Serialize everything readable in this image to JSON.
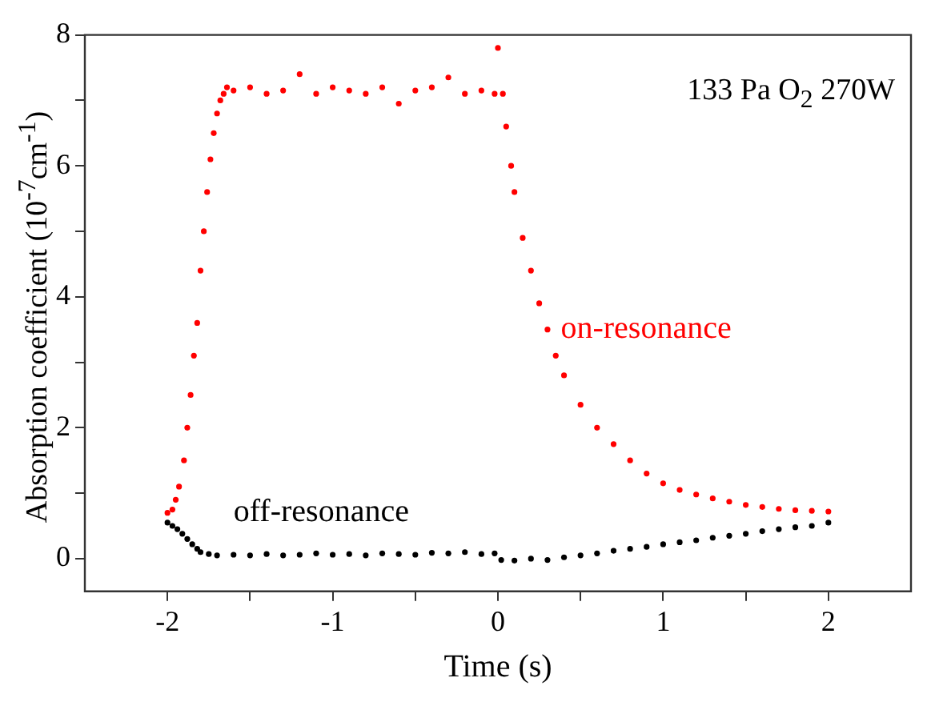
{
  "chart_data": {
    "type": "scatter",
    "xlabel": "Time (s)",
    "ylabel": "Absorption coefficient (10$^{-7}$cm$^{-1}$)",
    "annotations": [
      "133 Pa O$_{2}$ 270W"
    ],
    "xlim": [
      -2.5,
      2.5
    ],
    "ylim": [
      -0.5,
      8
    ],
    "xticks": [
      -2,
      {
        "value": -1.5,
        "label": null
      },
      -1,
      {
        "value": -0.5,
        "label": null
      },
      0,
      {
        "value": 0.5,
        "label": null
      },
      1,
      {
        "value": 1.5,
        "label": null
      },
      2
    ],
    "yticks": [
      0,
      {
        "value": 1,
        "label": null
      },
      2,
      {
        "value": 3,
        "label": null
      },
      4,
      {
        "value": 5,
        "label": null
      },
      6,
      {
        "value": 7,
        "label": null
      },
      8
    ],
    "grid": false,
    "legend": false,
    "marker": "circle",
    "series": [
      {
        "name": "on-resonance",
        "color": "#ff0000",
        "x": [
          -2,
          -1.97,
          -1.95,
          -1.93,
          -1.9,
          -1.88,
          -1.86,
          -1.84,
          -1.82,
          -1.8,
          -1.78,
          -1.76,
          -1.74,
          -1.72,
          -1.7,
          -1.68,
          -1.66,
          -1.64,
          -1.6,
          -1.5,
          -1.4,
          -1.3,
          -1.2,
          -1.1,
          -1,
          -0.9,
          -0.8,
          -0.7,
          -0.6,
          -0.5,
          -0.4,
          -0.3,
          -0.2,
          -0.1,
          -0.02,
          0,
          0.03,
          0.05,
          0.08,
          0.1,
          0.15,
          0.2,
          0.25,
          0.3,
          0.35,
          0.4,
          0.5,
          0.6,
          0.7,
          0.8,
          0.9,
          1,
          1.1,
          1.2,
          1.3,
          1.4,
          1.5,
          1.6,
          1.7,
          1.8,
          1.9,
          2
        ],
        "values": [
          0.7,
          0.75,
          0.9,
          1.1,
          1.5,
          2,
          2.5,
          3.1,
          3.6,
          4.4,
          5,
          5.6,
          6.1,
          6.5,
          6.8,
          7,
          7.1,
          7.2,
          7.15,
          7.2,
          7.1,
          7.15,
          7.4,
          7.1,
          7.2,
          7.15,
          7.1,
          7.2,
          6.95,
          7.15,
          7.2,
          7.35,
          7.1,
          7.15,
          7.1,
          7.8,
          7.1,
          6.6,
          6,
          5.6,
          4.9,
          4.4,
          3.9,
          3.5,
          3.1,
          2.8,
          2.35,
          2,
          1.75,
          1.5,
          1.3,
          1.15,
          1.05,
          0.98,
          0.92,
          0.87,
          0.82,
          0.79,
          0.76,
          0.74,
          0.73,
          0.72
        ]
      },
      {
        "name": "off-resonance",
        "color": "#000000",
        "x": [
          -2,
          -1.97,
          -1.94,
          -1.91,
          -1.88,
          -1.85,
          -1.82,
          -1.8,
          -1.75,
          -1.7,
          -1.6,
          -1.5,
          -1.4,
          -1.3,
          -1.2,
          -1.1,
          -1,
          -0.9,
          -0.8,
          -0.7,
          -0.6,
          -0.5,
          -0.4,
          -0.3,
          -0.2,
          -0.1,
          -0.02,
          0.02,
          0.1,
          0.2,
          0.3,
          0.4,
          0.5,
          0.6,
          0.7,
          0.8,
          0.9,
          1,
          1.1,
          1.2,
          1.3,
          1.4,
          1.5,
          1.6,
          1.7,
          1.8,
          1.9,
          2
        ],
        "values": [
          0.55,
          0.5,
          0.45,
          0.38,
          0.3,
          0.22,
          0.15,
          0.1,
          0.07,
          0.05,
          0.06,
          0.05,
          0.07,
          0.05,
          0.06,
          0.08,
          0.06,
          0.07,
          0.05,
          0.08,
          0.07,
          0.06,
          0.09,
          0.08,
          0.1,
          0.07,
          0.08,
          -0.02,
          -0.03,
          0,
          -0.02,
          0.02,
          0.05,
          0.08,
          0.12,
          0.15,
          0.18,
          0.22,
          0.25,
          0.28,
          0.32,
          0.35,
          0.38,
          0.42,
          0.45,
          0.48,
          0.5,
          0.55
        ]
      }
    ]
  }
}
